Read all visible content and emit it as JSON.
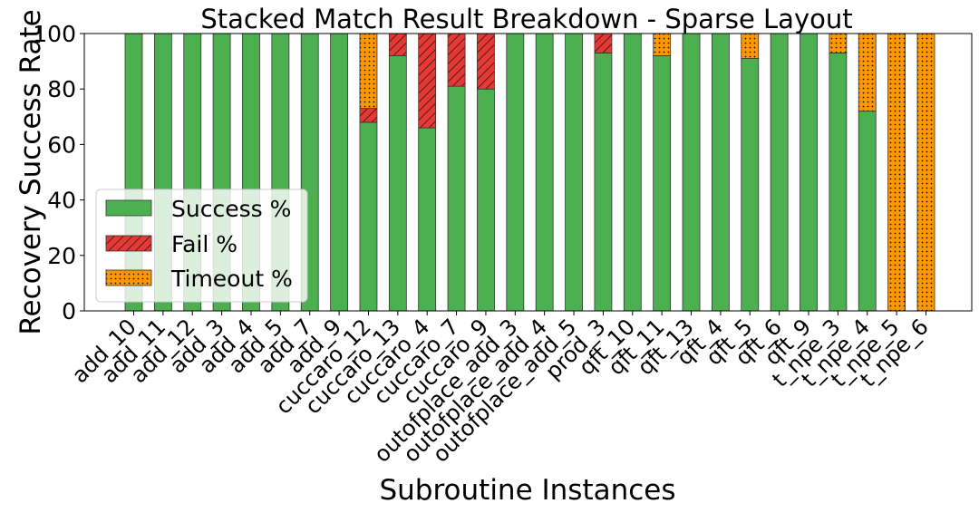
{
  "chart_data": {
    "type": "bar",
    "stacked": true,
    "title": "Stacked Match Result Breakdown - Sparse Layout",
    "xlabel": "Subroutine Instances",
    "ylabel": "Recovery Success Rate",
    "ylim": [
      0,
      100
    ],
    "yticks": [
      0,
      20,
      40,
      60,
      80,
      100
    ],
    "grid": false,
    "legend_position": "center-left",
    "categories": [
      "add_10",
      "add_11",
      "add_12",
      "add_3",
      "add_4",
      "add_5",
      "add_7",
      "add_9",
      "cuccaro_12",
      "cuccaro_13",
      "cuccaro_4",
      "cuccaro_7",
      "cuccaro_9",
      "outofplace_add_3",
      "outofplace_add_4",
      "outofplace_add_5",
      "prod_3",
      "qft_10",
      "qft_11",
      "qft_13",
      "qft_4",
      "qft_5",
      "qft_6",
      "qft_9",
      "t_npe_3",
      "t_npe_4",
      "t_npe_5",
      "t_npe_6"
    ],
    "series": [
      {
        "name": "Success %",
        "color": "#4caf50",
        "pattern": "solid",
        "values": [
          100,
          100,
          100,
          100,
          100,
          100,
          100,
          100,
          68,
          92,
          66,
          81,
          80,
          100,
          100,
          100,
          93,
          100,
          92,
          100,
          100,
          91,
          100,
          100,
          93,
          72,
          0,
          0
        ]
      },
      {
        "name": "Fail %",
        "color": "#e53935",
        "pattern": "diagonal-hatch",
        "values": [
          0,
          0,
          0,
          0,
          0,
          0,
          0,
          0,
          5,
          8,
          34,
          19,
          20,
          0,
          0,
          0,
          7,
          0,
          0,
          0,
          0,
          0,
          0,
          0,
          0,
          0,
          0,
          0
        ]
      },
      {
        "name": "Timeout %",
        "color": "#ff9800",
        "pattern": "dots",
        "values": [
          0,
          0,
          0,
          0,
          0,
          0,
          0,
          0,
          27,
          0,
          0,
          0,
          0,
          0,
          0,
          0,
          0,
          0,
          8,
          0,
          0,
          9,
          0,
          0,
          7,
          28,
          100,
          100
        ]
      }
    ]
  }
}
